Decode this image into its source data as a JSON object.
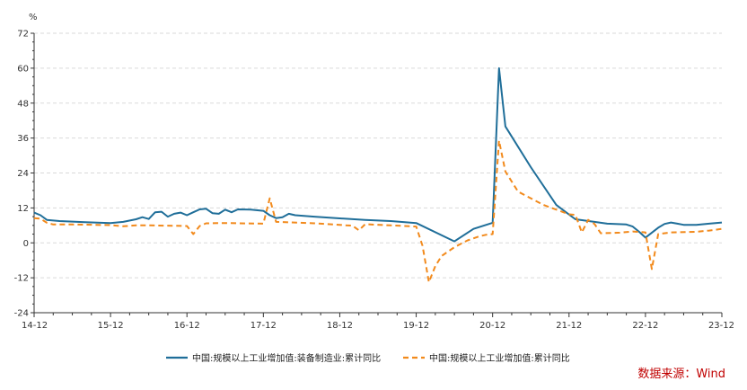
{
  "source": "数据来源：Wind",
  "colors": {
    "s1": "#1f6e99",
    "s2": "#f28a1c",
    "grid": "#d9d9d9",
    "axis": "#333333"
  },
  "chart_data": {
    "type": "line",
    "unit_label": "%",
    "ylim": [
      -24,
      72
    ],
    "yticks": [
      -24,
      -12,
      0,
      12,
      24,
      36,
      48,
      60,
      72
    ],
    "xlim": [
      0,
      108
    ],
    "xticks": [
      {
        "x": 0,
        "label": "14-12"
      },
      {
        "x": 12,
        "label": "15-12"
      },
      {
        "x": 24,
        "label": "16-12"
      },
      {
        "x": 36,
        "label": "17-12"
      },
      {
        "x": 48,
        "label": "18-12"
      },
      {
        "x": 60,
        "label": "19-12"
      },
      {
        "x": 72,
        "label": "20-12"
      },
      {
        "x": 84,
        "label": "21-12"
      },
      {
        "x": 96,
        "label": "22-12"
      },
      {
        "x": 108,
        "label": "23-12"
      }
    ],
    "grid": "horizontal dashed",
    "legend_position": "bottom",
    "series": [
      {
        "name": "中国:规模以上工业增加值:装备制造业:累计同比",
        "color": "#1f6e99",
        "style": "solid",
        "points": [
          [
            0,
            10.4
          ],
          [
            1,
            9.5
          ],
          [
            2,
            7.9
          ],
          [
            4,
            7.5
          ],
          [
            8,
            7.1
          ],
          [
            12,
            6.8
          ],
          [
            14,
            7.2
          ],
          [
            16,
            8.1
          ],
          [
            17,
            8.8
          ],
          [
            18,
            8.2
          ],
          [
            19,
            10.5
          ],
          [
            20,
            10.7
          ],
          [
            21,
            9.0
          ],
          [
            22,
            10.0
          ],
          [
            23,
            10.4
          ],
          [
            24,
            9.5
          ],
          [
            25,
            10.5
          ],
          [
            26,
            11.5
          ],
          [
            27,
            11.7
          ],
          [
            28,
            10.2
          ],
          [
            29,
            10.0
          ],
          [
            30,
            11.4
          ],
          [
            31,
            10.5
          ],
          [
            32,
            11.5
          ],
          [
            34,
            11.4
          ],
          [
            36,
            11.0
          ],
          [
            37,
            9.5
          ],
          [
            38,
            8.5
          ],
          [
            39,
            8.8
          ],
          [
            40,
            10.0
          ],
          [
            41,
            9.5
          ],
          [
            44,
            9.0
          ],
          [
            48,
            8.4
          ],
          [
            52,
            7.9
          ],
          [
            56,
            7.5
          ],
          [
            60,
            6.8
          ],
          [
            66,
            0.5
          ],
          [
            69,
            4.8
          ],
          [
            72,
            6.9
          ],
          [
            73,
            60.0
          ],
          [
            74,
            40.0
          ],
          [
            78,
            26.0
          ],
          [
            82,
            13.0
          ],
          [
            85,
            8.1
          ],
          [
            88,
            7.2
          ],
          [
            90,
            6.6
          ],
          [
            93,
            6.3
          ],
          [
            94,
            5.6
          ],
          [
            95,
            3.8
          ],
          [
            96,
            1.8
          ],
          [
            97,
            3.5
          ],
          [
            98,
            5.2
          ],
          [
            99,
            6.5
          ],
          [
            100,
            7.0
          ],
          [
            101,
            6.6
          ],
          [
            102,
            6.2
          ],
          [
            104,
            6.2
          ],
          [
            106,
            6.6
          ],
          [
            108,
            7.0
          ]
        ]
      },
      {
        "name": "中国:规模以上工业增加值:累计同比",
        "color": "#f28a1c",
        "style": "dashed",
        "points": [
          [
            0,
            8.5
          ],
          [
            1,
            8.3
          ],
          [
            2,
            6.9
          ],
          [
            3,
            6.3
          ],
          [
            6,
            6.3
          ],
          [
            12,
            6.1
          ],
          [
            14,
            5.7
          ],
          [
            16,
            6.0
          ],
          [
            18,
            6.0
          ],
          [
            24,
            5.8
          ],
          [
            25,
            3.0
          ],
          [
            26,
            5.8
          ],
          [
            27,
            6.7
          ],
          [
            30,
            6.8
          ],
          [
            36,
            6.6
          ],
          [
            37,
            15.3
          ],
          [
            38,
            7.2
          ],
          [
            44,
            6.7
          ],
          [
            48,
            6.2
          ],
          [
            49,
            6.0
          ],
          [
            50,
            5.9
          ],
          [
            51,
            4.3
          ],
          [
            52,
            6.4
          ],
          [
            56,
            6.0
          ],
          [
            60,
            5.6
          ],
          [
            61,
            -1.0
          ],
          [
            62,
            -13.5
          ],
          [
            63,
            -8.0
          ],
          [
            64,
            -4.5
          ],
          [
            66,
            -1.5
          ],
          [
            68,
            0.8
          ],
          [
            70,
            2.3
          ],
          [
            71,
            2.8
          ],
          [
            72,
            3.0
          ],
          [
            73,
            35.1
          ],
          [
            74,
            24.5
          ],
          [
            76,
            17.6
          ],
          [
            80,
            13.0
          ],
          [
            84,
            9.8
          ],
          [
            85,
            9.6
          ],
          [
            86,
            3.6
          ],
          [
            87,
            7.9
          ],
          [
            88,
            6.5
          ],
          [
            89,
            3.3
          ],
          [
            92,
            3.5
          ],
          [
            94,
            3.9
          ],
          [
            96,
            3.6
          ],
          [
            97,
            -9.0
          ],
          [
            98,
            3.0
          ],
          [
            100,
            3.6
          ],
          [
            104,
            3.8
          ],
          [
            106,
            4.2
          ],
          [
            108,
            4.8
          ]
        ]
      }
    ]
  }
}
